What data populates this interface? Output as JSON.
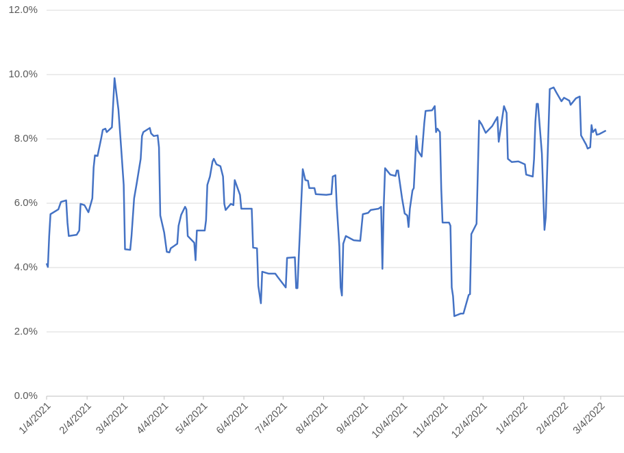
{
  "chart_data": {
    "type": "line",
    "x": [
      "1/4/2021",
      "1/5/2021",
      "1/6/2021",
      "1/7/2021",
      "1/13/2021",
      "1/15/2021",
      "1/19/2021",
      "1/20/2021",
      "1/21/2021",
      "1/27/2021",
      "1/29/2021",
      "1/30/2021",
      "2/2/2021",
      "2/5/2021",
      "2/8/2021",
      "2/9/2021",
      "2/10/2021",
      "2/12/2021",
      "2/15/2021",
      "2/16/2021",
      "2/18/2021",
      "2/19/2021",
      "2/23/2021",
      "2/25/2021",
      "2/28/2021",
      "3/2/2021",
      "3/4/2021",
      "3/5/2021",
      "3/9/2021",
      "3/10/2021",
      "3/12/2021",
      "3/14/2021",
      "3/17/2021",
      "3/18/2021",
      "3/19/2021",
      "3/24/2021",
      "3/25/2021",
      "3/27/2021",
      "3/30/2021",
      "3/31/2021",
      "4/1/2021",
      "4/4/2021",
      "4/6/2021",
      "4/8/2021",
      "4/9/2021",
      "4/14/2021",
      "4/15/2021",
      "4/17/2021",
      "4/20/2021",
      "4/21/2021",
      "4/22/2021",
      "4/27/2021",
      "4/28/2021",
      "4/29/2021",
      "5/5/2021",
      "5/6/2021",
      "5/7/2021",
      "5/9/2021",
      "5/11/2021",
      "5/12/2021",
      "5/14/2021",
      "5/17/2021",
      "5/19/2021",
      "5/20/2021",
      "5/21/2021",
      "5/25/2021",
      "5/27/2021",
      "5/28/2021",
      "6/1/2021",
      "6/2/2021",
      "6/10/2021",
      "6/11/2021",
      "6/14/2021",
      "6/15/2021",
      "6/17/2021",
      "6/18/2021",
      "6/23/2021",
      "6/28/2021",
      "6/30/2021",
      "7/4/2021",
      "7/6/2021",
      "7/7/2021",
      "7/13/2021",
      "7/14/2021",
      "7/15/2021",
      "7/16/2021",
      "7/19/2021",
      "7/21/2021",
      "7/23/2021",
      "7/24/2021",
      "7/28/2021",
      "7/29/2021",
      "8/6/2021",
      "8/10/2021",
      "8/11/2021",
      "8/13/2021",
      "8/14/2021",
      "8/16/2021",
      "8/17/2021",
      "8/18/2021",
      "8/19/2021",
      "8/21/2021",
      "8/27/2021",
      "9/1/2021",
      "9/3/2021",
      "9/7/2021",
      "9/9/2021",
      "9/15/2021",
      "9/17/2021",
      "9/18/2021",
      "9/19/2021",
      "9/20/2021",
      "9/24/2021",
      "9/28/2021",
      "9/29/2021",
      "9/30/2021",
      "10/3/2021",
      "10/5/2021",
      "10/7/2021",
      "10/8/2021",
      "10/9/2021",
      "10/11/2021",
      "10/12/2021",
      "10/14/2021",
      "10/15/2021",
      "10/18/2021",
      "10/20/2021",
      "10/21/2021",
      "10/26/2021",
      "10/28/2021",
      "10/29/2021",
      "10/30/2021",
      "11/1/2021",
      "11/2/2021",
      "11/3/2021",
      "11/8/2021",
      "11/9/2021",
      "11/10/2021",
      "11/11/2021",
      "11/12/2021",
      "11/17/2021",
      "11/19/2021",
      "11/23/2021",
      "11/24/2021",
      "11/25/2021",
      "11/29/2021",
      "12/1/2021",
      "12/3/2021",
      "12/6/2021",
      "12/11/2021",
      "12/15/2021",
      "12/16/2021",
      "12/20/2021",
      "12/22/2021",
      "12/23/2021",
      "12/26/2021",
      "12/31/2021",
      "1/5/2022",
      "1/6/2022",
      "1/11/2022",
      "1/12/2022",
      "1/13/2022",
      "1/14/2022",
      "1/15/2022",
      "1/18/2022",
      "1/20/2022",
      "1/21/2022",
      "1/22/2022",
      "1/24/2022",
      "1/27/2022",
      "1/29/2022",
      "2/2/2022",
      "2/4/2022",
      "2/8/2022",
      "2/9/2022",
      "2/13/2022",
      "2/16/2022",
      "2/17/2022",
      "2/21/2022",
      "2/22/2022",
      "2/24/2022",
      "2/25/2022",
      "2/26/2022",
      "2/28/2022",
      "3/1/2022",
      "3/3/2022",
      "3/8/2022"
    ],
    "series": [
      {
        "color": "#4472c4",
        "values": [
          4.13,
          4.02,
          4.98,
          5.66,
          5.81,
          6.04,
          6.09,
          5.4,
          4.98,
          5.02,
          5.15,
          5.98,
          5.94,
          5.72,
          6.15,
          7.11,
          7.49,
          7.47,
          8.06,
          8.28,
          8.32,
          8.21,
          8.36,
          9.89,
          8.91,
          7.74,
          6.57,
          4.57,
          4.55,
          4.98,
          6.15,
          6.62,
          7.38,
          8.09,
          8.21,
          8.34,
          8.17,
          8.09,
          8.11,
          7.74,
          5.62,
          5.09,
          4.49,
          4.47,
          4.6,
          4.74,
          5.3,
          5.64,
          5.89,
          5.81,
          4.98,
          4.77,
          4.23,
          5.15,
          5.15,
          5.47,
          6.57,
          6.83,
          7.3,
          7.38,
          7.21,
          7.15,
          6.83,
          5.98,
          5.79,
          5.98,
          5.94,
          6.72,
          6.26,
          5.83,
          5.83,
          4.62,
          4.6,
          3.43,
          2.89,
          3.87,
          3.81,
          3.81,
          3.7,
          3.49,
          3.38,
          4.3,
          4.32,
          3.36,
          3.36,
          4.34,
          7.06,
          6.72,
          6.7,
          6.47,
          6.47,
          6.28,
          6.26,
          6.28,
          6.83,
          6.87,
          5.94,
          4.66,
          3.38,
          3.13,
          4.74,
          4.98,
          4.85,
          4.83,
          5.66,
          5.7,
          5.79,
          5.83,
          5.89,
          3.96,
          5.89,
          7.09,
          6.89,
          6.85,
          7.02,
          7.02,
          6.15,
          5.68,
          5.62,
          5.26,
          5.83,
          6.4,
          6.47,
          8.09,
          7.64,
          7.45,
          8.49,
          8.87,
          8.89,
          9.02,
          8.21,
          8.32,
          8.21,
          6.45,
          5.4,
          5.4,
          5.3,
          3.38,
          3.11,
          2.49,
          2.57,
          2.57,
          3.15,
          3.17,
          5.04,
          5.36,
          8.57,
          8.45,
          8.19,
          8.4,
          8.68,
          7.91,
          9.02,
          8.81,
          7.38,
          7.28,
          7.3,
          7.21,
          6.89,
          6.83,
          7.38,
          8.53,
          9.09,
          9.09,
          7.55,
          5.17,
          5.57,
          6.91,
          9.55,
          9.6,
          9.45,
          9.17,
          9.28,
          9.19,
          9.06,
          9.26,
          9.32,
          8.11,
          7.81,
          7.7,
          7.74,
          8.43,
          8.21,
          8.3,
          8.13,
          8.15,
          8.26
        ]
      }
    ],
    "xlim": [
      "1/4/2021",
      "3/8/2022"
    ],
    "xticks": [
      "1/4/2021",
      "2/4/2021",
      "3/4/2021",
      "4/4/2021",
      "5/4/2021",
      "6/4/2021",
      "7/4/2021",
      "8/4/2021",
      "9/4/2021",
      "10/4/2021",
      "11/4/2021",
      "12/4/2021",
      "1/4/2022",
      "2/4/2022",
      "3/4/2022"
    ],
    "ylim": [
      0,
      12
    ],
    "yticks": [
      {
        "value": 0,
        "label": "0.0%"
      },
      {
        "value": 2,
        "label": "2.0%"
      },
      {
        "value": 4,
        "label": "4.0%"
      },
      {
        "value": 6,
        "label": "6.0%"
      },
      {
        "value": 8,
        "label": "8.0%"
      },
      {
        "value": 10,
        "label": "10.0%"
      },
      {
        "value": 12,
        "label": "12.0%"
      }
    ],
    "grid": true
  }
}
